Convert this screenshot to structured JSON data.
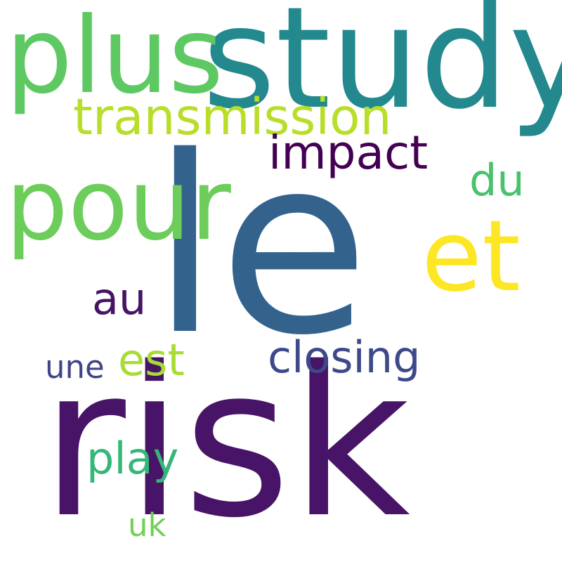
{
  "words": [
    {
      "id": "le",
      "text": "le",
      "color": "#33638d"
    },
    {
      "id": "risk",
      "text": "risk",
      "color": "#481467"
    },
    {
      "id": "study",
      "text": "study",
      "color": "#23898e"
    },
    {
      "id": "plus",
      "text": "plus",
      "color": "#5ec962"
    },
    {
      "id": "pour",
      "text": "pour",
      "color": "#6ccd5a"
    },
    {
      "id": "et",
      "text": "et",
      "color": "#fde725"
    },
    {
      "id": "transmission",
      "text": "transmission",
      "color": "#b8de29"
    },
    {
      "id": "impact",
      "text": "impact",
      "color": "#440154"
    },
    {
      "id": "closing",
      "text": "closing",
      "color": "#3e4989"
    },
    {
      "id": "est",
      "text": "est",
      "color": "#a8db34"
    },
    {
      "id": "du",
      "text": "du",
      "color": "#4ac16d"
    },
    {
      "id": "au",
      "text": "au",
      "color": "#471365"
    },
    {
      "id": "play",
      "text": "play",
      "color": "#35b779"
    },
    {
      "id": "une",
      "text": "une",
      "color": "#414487"
    },
    {
      "id": "uk",
      "text": "uk",
      "color": "#73d056"
    }
  ]
}
